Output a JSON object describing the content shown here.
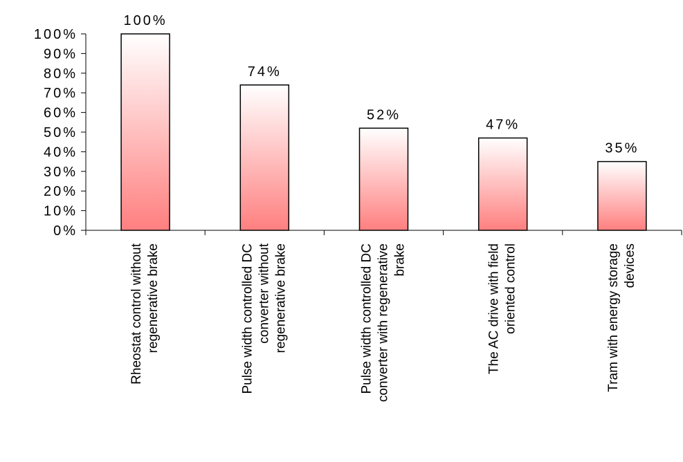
{
  "chart_data": {
    "type": "bar",
    "categories": [
      [
        "Rheostat control  without",
        "regenerative  brake"
      ],
      [
        "Pulse width  controlled  DC",
        "converter  without",
        "regenerative  brake"
      ],
      [
        "Pulse width  controlled  DC",
        "converter  with  regenerative",
        "brake"
      ],
      [
        "The AC drive  with  field",
        "oriented  control"
      ],
      [
        "Tram with  energy  storage",
        "devices"
      ]
    ],
    "values": [
      100,
      74,
      52,
      47,
      35
    ],
    "data_labels": [
      "100%",
      "74%",
      "52%",
      "47%",
      "35%"
    ],
    "y_ticks": [
      "0%",
      "10%",
      "20%",
      "30%",
      "40%",
      "50%",
      "60%",
      "70%",
      "80%",
      "90%",
      "100%"
    ],
    "ylim": [
      0,
      100
    ],
    "title": "",
    "xlabel": "",
    "ylabel": "",
    "grid": false,
    "legend": "none",
    "colors": {
      "bar_top": "#ffffff",
      "bar_bottom": "#ff7f7f",
      "bar_outline": "#000000",
      "axis": "#000000"
    }
  }
}
